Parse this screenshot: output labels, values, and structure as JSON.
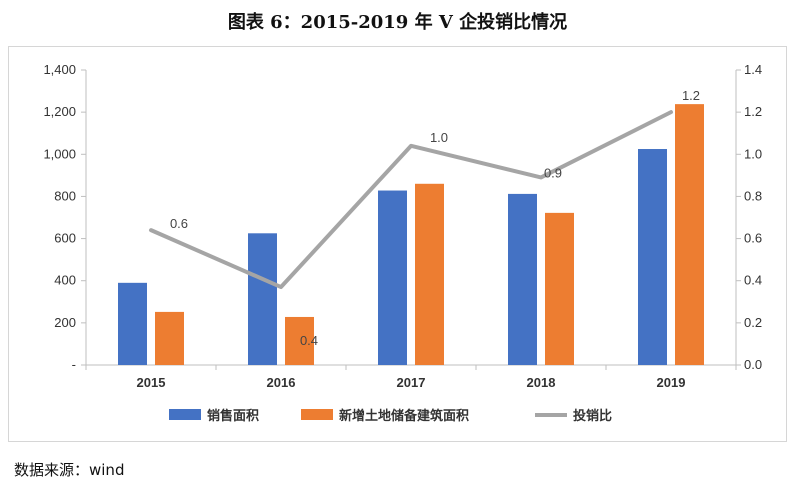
{
  "title": "图表 6：2015-2019 年 V 企投销比情况",
  "source": "数据来源：wind",
  "colors": {
    "blue": "#4472C4",
    "orange": "#ED7D31",
    "gray": "#A5A5A5"
  },
  "chart_data": {
    "type": "bar",
    "categories": [
      "2015",
      "2016",
      "2017",
      "2018",
      "2019"
    ],
    "series": [
      {
        "name": "销售面积",
        "type": "bar",
        "axis": "left",
        "values": [
          390,
          625,
          828,
          812,
          1025
        ]
      },
      {
        "name": "新增土地储备建筑面积",
        "type": "bar",
        "axis": "left",
        "values": [
          252,
          228,
          860,
          722,
          1238
        ]
      },
      {
        "name": "投销比",
        "type": "line",
        "axis": "right",
        "values": [
          0.64,
          0.37,
          1.04,
          0.89,
          1.2
        ],
        "data_labels": [
          "0.6",
          "0.4",
          "1.0",
          "0.9",
          "1.2"
        ]
      }
    ],
    "y_left": {
      "min": 0,
      "max": 1400,
      "step": 200,
      "tick_labels": [
        "-",
        "200",
        "400",
        "600",
        "800",
        "1,000",
        "1,200",
        "1,400"
      ]
    },
    "y_right": {
      "min": 0,
      "max": 1.4,
      "step": 0.2,
      "tick_labels": [
        "0.0",
        "0.2",
        "0.4",
        "0.6",
        "0.8",
        "1.0",
        "1.2",
        "1.4"
      ]
    },
    "grid": false,
    "legend_position": "bottom"
  }
}
